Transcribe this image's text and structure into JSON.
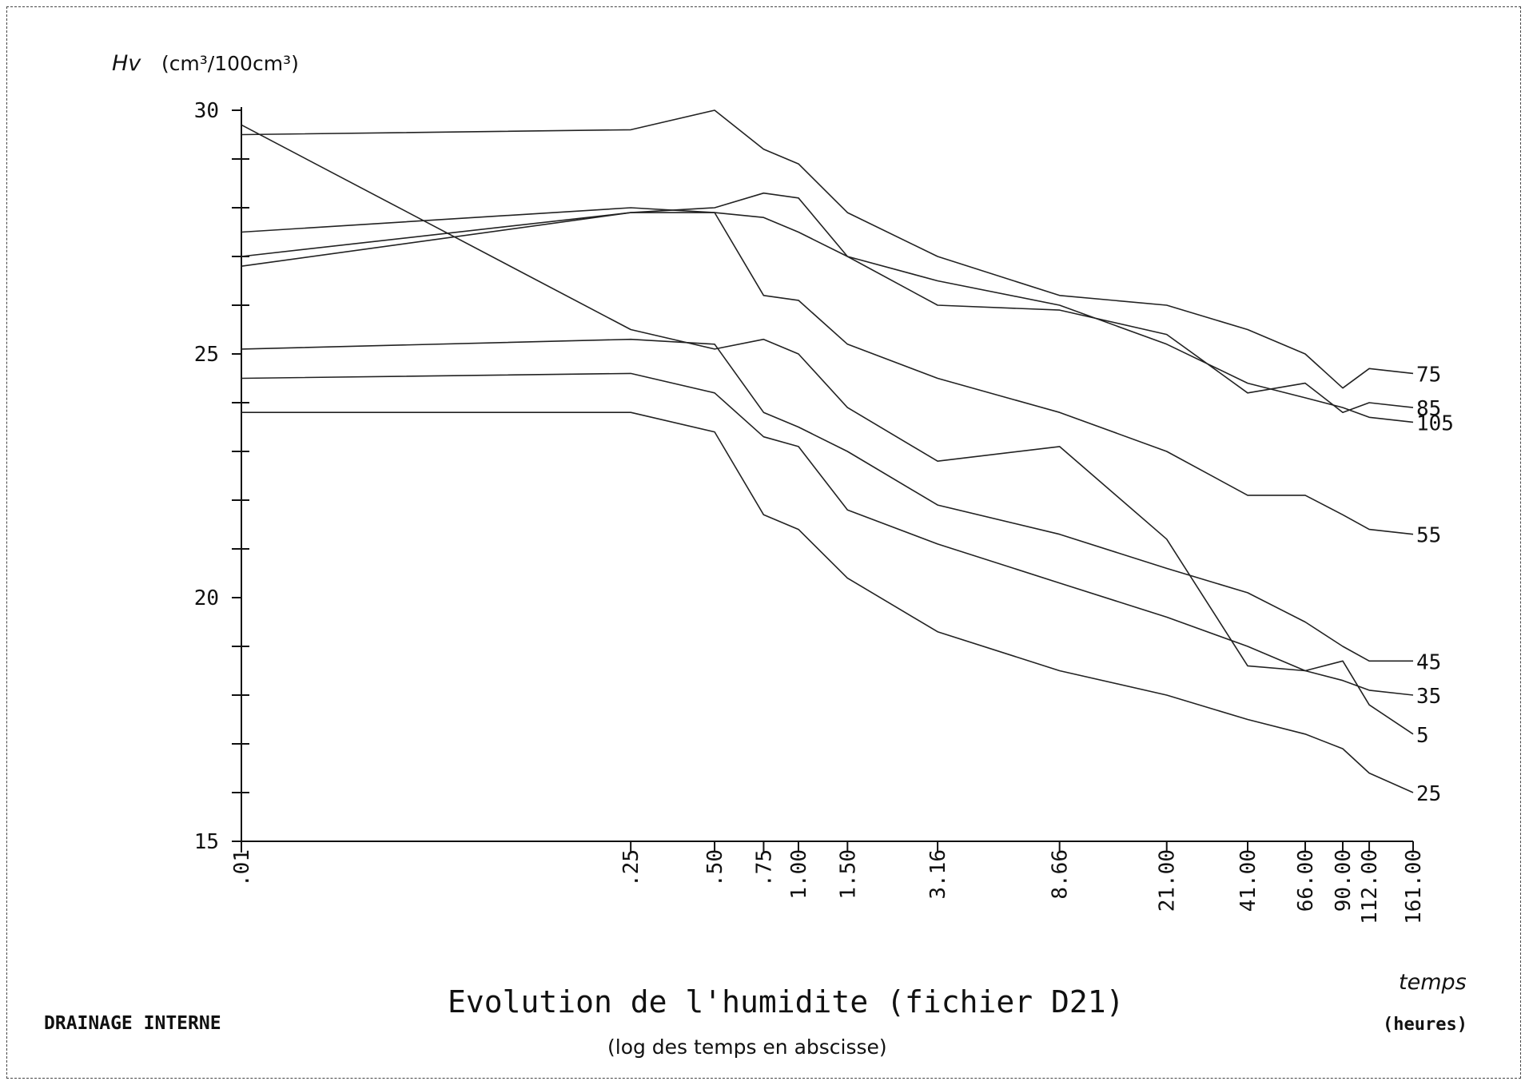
{
  "chart_data": {
    "type": "line",
    "title": "Evolution de l'humidite (fichier D21)",
    "subtitle": "(log des temps en abscisse)",
    "note": "DRAINAGE INTERNE",
    "ylabel_var": "Hv",
    "ylabel_unit": "(cm³/100cm³)",
    "xlabel": "temps",
    "xlabel_unit": "(heures)",
    "xscale": "log",
    "x": [
      0.01,
      0.25,
      0.5,
      0.75,
      1.0,
      1.5,
      3.16,
      8.66,
      21.0,
      41.0,
      66.0,
      90.0,
      112.0,
      161.0
    ],
    "x_tick_labels": [
      ".01",
      ".25",
      ".50",
      ".75",
      "1.00",
      "1.50",
      "3.16",
      "8.66",
      "21.00",
      "41.00",
      "66.00",
      "90.00",
      "112.00",
      "161.00"
    ],
    "ylim": [
      15,
      30
    ],
    "y_tick_labels": [
      "15",
      "20",
      "25",
      "30"
    ],
    "y_tick_values": [
      15,
      20,
      25,
      30
    ],
    "y_minor_step": 1,
    "grid": false,
    "series": [
      {
        "name": "75",
        "values": [
          29.5,
          29.6,
          30.0,
          29.2,
          28.9,
          27.9,
          27.0,
          26.2,
          26.0,
          25.5,
          25.0,
          24.3,
          24.7,
          24.6
        ]
      },
      {
        "name": "85",
        "values": [
          26.8,
          27.9,
          28.0,
          28.3,
          28.2,
          27.0,
          26.0,
          25.9,
          25.4,
          24.2,
          24.4,
          23.8,
          24.0,
          23.9
        ]
      },
      {
        "name": "105",
        "values": [
          27.0,
          27.9,
          27.9,
          27.8,
          27.5,
          27.0,
          26.5,
          26.0,
          25.2,
          24.4,
          24.1,
          23.9,
          23.7,
          23.6
        ]
      },
      {
        "name": "55",
        "values": [
          27.5,
          28.0,
          27.9,
          26.2,
          26.1,
          25.2,
          24.5,
          23.8,
          23.0,
          22.1,
          22.1,
          21.7,
          21.4,
          21.3
        ]
      },
      {
        "name": "45",
        "values": [
          25.1,
          25.3,
          25.2,
          23.8,
          23.5,
          23.0,
          21.9,
          21.3,
          20.6,
          20.1,
          19.5,
          19.0,
          18.7,
          18.7
        ]
      },
      {
        "name": "35",
        "values": [
          24.5,
          24.6,
          24.2,
          23.3,
          23.1,
          21.8,
          21.1,
          20.3,
          19.6,
          19.0,
          18.5,
          18.3,
          18.1,
          18.0
        ]
      },
      {
        "name": "5",
        "values": [
          29.7,
          25.5,
          25.1,
          25.3,
          25.0,
          23.9,
          22.8,
          23.1,
          21.2,
          18.6,
          18.5,
          18.7,
          17.8,
          17.2
        ]
      },
      {
        "name": "25",
        "values": [
          23.8,
          23.8,
          23.4,
          21.7,
          21.4,
          20.4,
          19.3,
          18.5,
          18.0,
          17.5,
          17.2,
          16.9,
          16.4,
          16.0
        ]
      }
    ]
  }
}
